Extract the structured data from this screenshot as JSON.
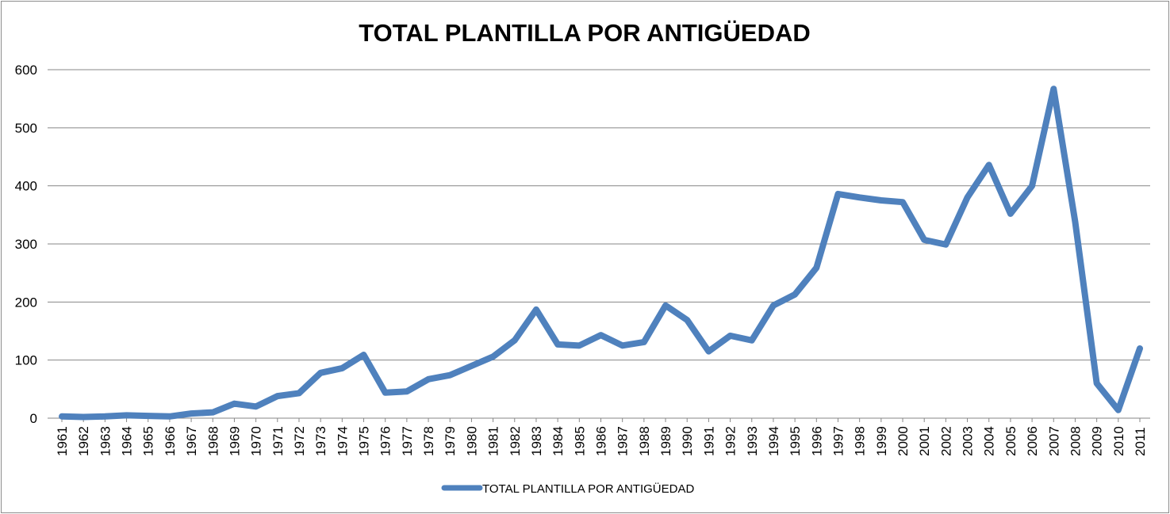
{
  "chart_data": {
    "type": "line",
    "title": "TOTAL PLANTILLA POR ANTIGÜEDAD",
    "xlabel": "",
    "ylabel": "",
    "ylim": [
      0,
      600
    ],
    "yticks": [
      "0",
      "100",
      "200",
      "300",
      "400",
      "500",
      "600"
    ],
    "grid": true,
    "legend_position": "bottom",
    "categories": [
      "1961",
      "1962",
      "1963",
      "1964",
      "1965",
      "1966",
      "1967",
      "1968",
      "1969",
      "1970",
      "1971",
      "1972",
      "1973",
      "1974",
      "1975",
      "1976",
      "1977",
      "1978",
      "1979",
      "1980",
      "1981",
      "1982",
      "1983",
      "1984",
      "1985",
      "1986",
      "1987",
      "1988",
      "1989",
      "1990",
      "1991",
      "1992",
      "1993",
      "1994",
      "1995",
      "1996",
      "1997",
      "1998",
      "1999",
      "2000",
      "2001",
      "2002",
      "2003",
      "2004",
      "2005",
      "2006",
      "2007",
      "2008",
      "2009",
      "2010",
      "2011"
    ],
    "series": [
      {
        "name": "TOTAL PLANTILLA POR ANTIGÜEDAD",
        "color": "#4f81bd",
        "values": [
          3,
          2,
          3,
          5,
          4,
          3,
          8,
          10,
          25,
          20,
          38,
          43,
          78,
          86,
          109,
          44,
          46,
          67,
          74,
          90,
          106,
          134,
          187,
          127,
          125,
          143,
          125,
          131,
          194,
          169,
          115,
          142,
          134,
          194,
          213,
          259,
          386,
          380,
          375,
          372,
          307,
          299,
          380,
          436,
          352,
          400,
          567,
          338,
          60,
          14,
          120
        ]
      }
    ]
  }
}
